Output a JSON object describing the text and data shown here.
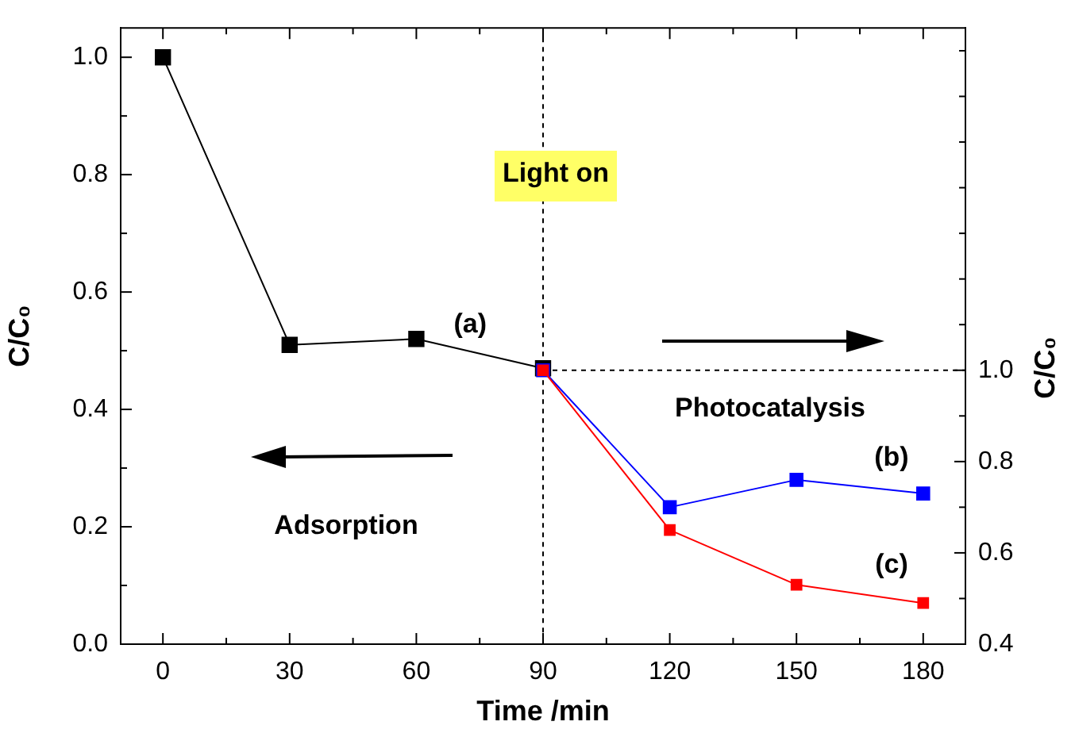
{
  "chart_data": {
    "type": "line",
    "xlabel": "Time /min",
    "ylabel": "C/C₀",
    "y2label": "C/C₀",
    "annotations": [
      "Light on",
      "Photocatalysis",
      "Adsorption"
    ],
    "marker": "square",
    "line_style": "solid",
    "grid": false,
    "legend": false,
    "xlim": [
      -10,
      190
    ],
    "xticks": [
      0,
      {
        "value": 15,
        "label": null
      },
      30,
      {
        "value": 45,
        "label": null
      },
      60,
      {
        "value": 75,
        "label": null
      },
      90,
      {
        "value": 105,
        "label": null
      },
      120,
      {
        "value": 135,
        "label": null
      },
      150,
      {
        "value": 165,
        "label": null
      },
      180
    ],
    "ylim": [
      0,
      1.05
    ],
    "yticks": [
      {
        "value": 0,
        "label": "0.0"
      },
      {
        "value": 0.1,
        "label": null
      },
      0.2,
      {
        "value": 0.3,
        "label": null
      },
      0.4,
      {
        "value": 0.5,
        "label": null
      },
      0.6,
      {
        "value": 0.7,
        "label": null
      },
      0.8,
      {
        "value": 0.9,
        "label": null
      },
      {
        "value": 1,
        "label": "1.0"
      }
    ],
    "y2lim": [
      0.4,
      1.75
    ],
    "y2ticks": [
      0.4,
      {
        "value": 0.5,
        "label": null
      },
      0.6,
      {
        "value": 0.7,
        "label": null
      },
      0.8,
      {
        "value": 0.9,
        "label": null
      },
      {
        "value": 1,
        "label": "1.0"
      },
      {
        "value": 1.1,
        "label": null
      },
      {
        "value": 1.2,
        "label": null
      },
      {
        "value": 1.3,
        "label": null
      },
      {
        "value": 1.4,
        "label": null
      },
      {
        "value": 1.5,
        "label": null
      },
      {
        "value": 1.6,
        "label": null
      },
      {
        "value": 1.7,
        "label": null
      }
    ],
    "ref_lines": [
      {
        "axis": "x",
        "value": 90,
        "color": "#000000",
        "line_style": "dashed"
      },
      {
        "axis": "y2",
        "value": 1,
        "color": "#000000",
        "line_style": "dashed"
      }
    ],
    "series": [
      {
        "name": "(a)",
        "color": "#000000",
        "x": [
          0,
          30,
          60,
          90
        ],
        "values": [
          1.0,
          0.51,
          0.52,
          0.47
        ]
      },
      {
        "name": "(b)",
        "color": "#0000ff",
        "axis": "y2",
        "x": [
          90,
          120,
          150,
          180
        ],
        "values": [
          1.0,
          0.7,
          0.76,
          0.73
        ]
      },
      {
        "name": "(c)",
        "color": "#ff0000",
        "axis": "y2",
        "x": [
          90,
          120,
          150,
          180
        ],
        "values": [
          1.0,
          0.65,
          0.53,
          0.49
        ]
      }
    ]
  }
}
